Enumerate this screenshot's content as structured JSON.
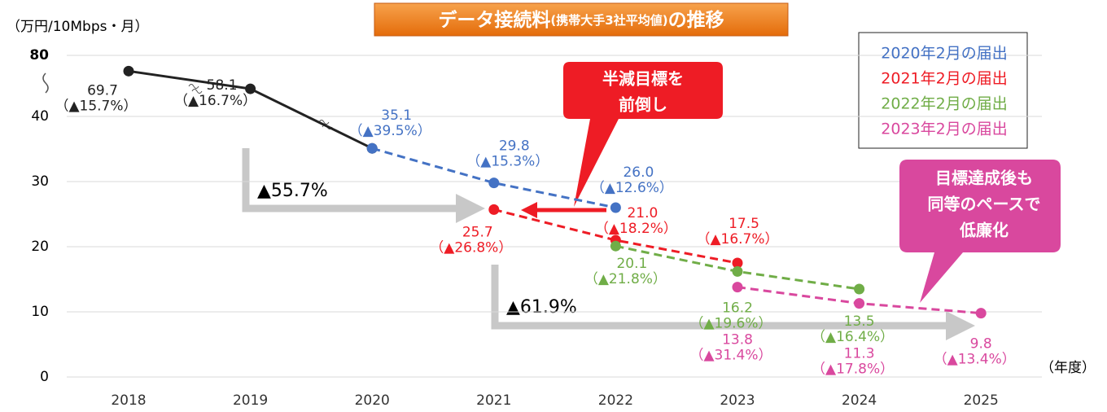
{
  "chart_data": {
    "type": "line",
    "title_parts": [
      "データ接続料",
      "(携帯大手3社平均値)",
      "の推移"
    ],
    "y_label": "（万円/10Mbps・月）",
    "x_label": "（年度）",
    "categories": [
      "2018",
      "2019",
      "2020",
      "2021",
      "2022",
      "2023",
      "2024",
      "2025"
    ],
    "ylim": [
      0,
      80
    ],
    "yticks": [
      0,
      10,
      20,
      30,
      40,
      80
    ],
    "axis_break": 40,
    "grid": true,
    "series": [
      {
        "color": "#222222",
        "dashed": false,
        "values": [
          69.7,
          58.1,
          35.1,
          null,
          null,
          null,
          null,
          null
        ],
        "changes": [
          "（▲15.7%）",
          "（▲16.7%）",
          null,
          null,
          null,
          null,
          null,
          null
        ],
        "show_values": [
          true,
          true,
          false,
          false,
          false,
          false,
          false,
          false
        ]
      },
      {
        "name": "2020年2月の届出",
        "color": "#4472c4",
        "dashed": true,
        "values": [
          null,
          null,
          35.1,
          29.8,
          26.0,
          null,
          null,
          null
        ],
        "changes": [
          null,
          null,
          "（▲39.5%）",
          "（▲15.3%）",
          "（▲12.6%）",
          null,
          null,
          null
        ],
        "value_labels": [
          null,
          null,
          "35.1",
          "29.8",
          "26.0",
          null,
          null,
          null
        ]
      },
      {
        "name": "2021年2月の届出",
        "color": "#ee1c25",
        "dashed": true,
        "values": [
          null,
          null,
          null,
          25.7,
          21.0,
          17.5,
          null,
          null
        ],
        "changes": [
          null,
          null,
          null,
          "（▲26.8%）",
          "（▲18.2%）",
          "（▲16.7%）",
          null,
          null
        ],
        "value_labels": [
          null,
          null,
          null,
          "25.7",
          "21.0",
          "17.5",
          null,
          null
        ]
      },
      {
        "name": "2022年2月の届出",
        "color": "#70ad47",
        "dashed": true,
        "values": [
          null,
          null,
          null,
          null,
          20.1,
          16.2,
          13.5,
          null
        ],
        "changes": [
          null,
          null,
          null,
          null,
          "（▲21.8%）",
          "（▲19.6%）",
          "（▲16.4%）",
          null
        ],
        "value_labels": [
          null,
          null,
          null,
          null,
          "20.1",
          "16.2",
          "13.5",
          null
        ]
      },
      {
        "name": "2023年2月の届出",
        "color": "#d9489e",
        "dashed": true,
        "values": [
          null,
          null,
          null,
          null,
          null,
          13.8,
          11.3,
          9.8
        ],
        "changes": [
          null,
          null,
          null,
          null,
          null,
          "（▲31.4%）",
          "（▲17.8%）",
          "（▲13.4%）"
        ],
        "value_labels": [
          null,
          null,
          null,
          null,
          null,
          "13.8",
          "11.3",
          "9.8"
        ]
      }
    ],
    "annotations": [
      "▲55.7%",
      "▲61.9%"
    ],
    "callouts": [
      {
        "lines": [
          "半減目標を",
          "前倒し"
        ],
        "color": "#ee1c25"
      },
      {
        "lines": [
          "目標達成後も",
          "同等のペースで",
          "低廉化"
        ],
        "color": "#d9489e"
      }
    ]
  }
}
